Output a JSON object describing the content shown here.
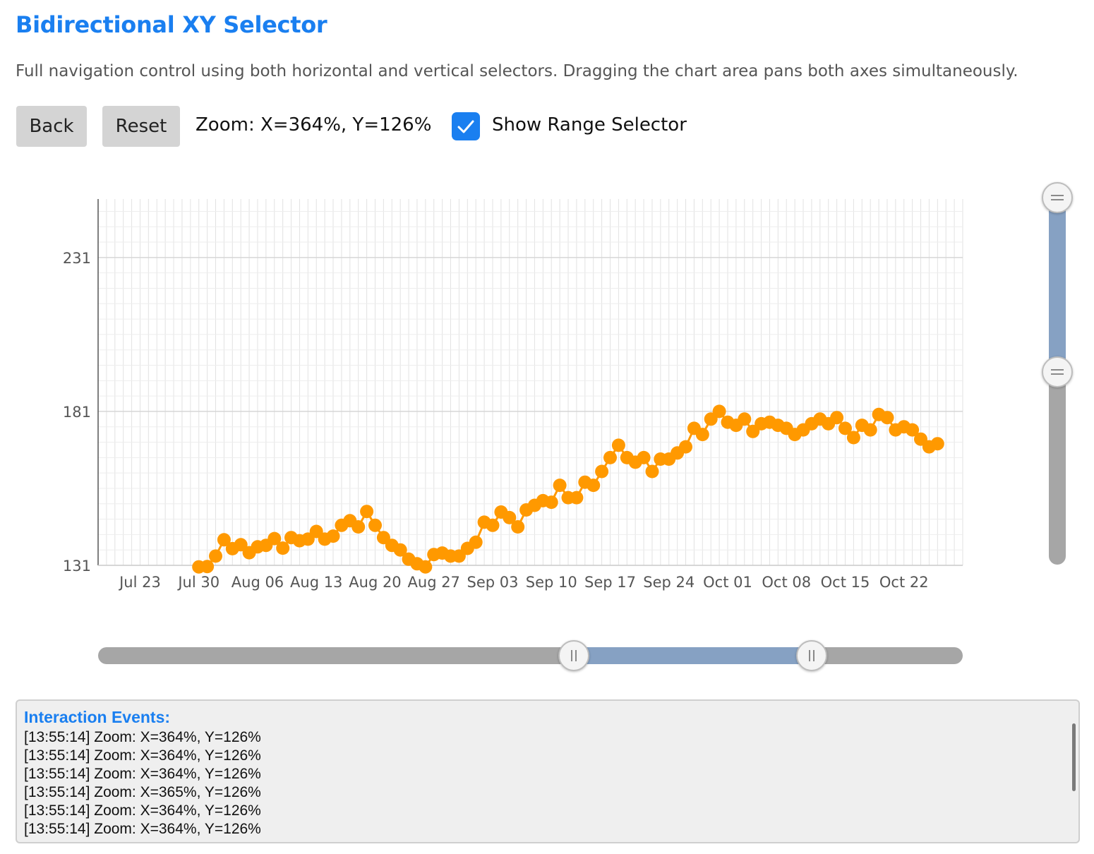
{
  "header": {
    "title": "Bidirectional XY Selector",
    "description": "Full navigation control using both horizontal and vertical selectors. Dragging the chart area pans both axes simultaneously."
  },
  "toolbar": {
    "back_label": "Back",
    "reset_label": "Reset",
    "zoom_text": "Zoom: X=364%, Y=126%",
    "range_selector_label": "Show Range Selector",
    "range_selector_checked": true
  },
  "colors": {
    "accent": "#1a7ff0",
    "series": "#ff9900",
    "selector_fill": "#86a1c3",
    "selector_track": "#a6a6a6"
  },
  "chart_data": {
    "type": "scatter",
    "x_type": "date",
    "x_range": [
      "2024-07-18",
      "2024-10-29"
    ],
    "ylim": [
      131,
      250
    ],
    "y_ticks": [
      131,
      181,
      231
    ],
    "x_tick_labels": [
      "Jul 23",
      "Jul 30",
      "Aug 06",
      "Aug 13",
      "Aug 20",
      "Aug 27",
      "Sep 03",
      "Sep 10",
      "Sep 17",
      "Sep 24",
      "Oct 01",
      "Oct 08",
      "Oct 15",
      "Oct 22"
    ],
    "x_tick_dates": [
      "2024-07-23",
      "2024-07-30",
      "2024-08-06",
      "2024-08-13",
      "2024-08-20",
      "2024-08-27",
      "2024-09-03",
      "2024-09-10",
      "2024-09-17",
      "2024-09-24",
      "2024-10-01",
      "2024-10-08",
      "2024-10-15",
      "2024-10-22"
    ],
    "grid": true,
    "lines_connecting_points": true,
    "x": [
      "2024-07-30",
      "2024-07-31",
      "2024-08-01",
      "2024-08-02",
      "2024-08-03",
      "2024-08-04",
      "2024-08-05",
      "2024-08-06",
      "2024-08-07",
      "2024-08-08",
      "2024-08-09",
      "2024-08-10",
      "2024-08-11",
      "2024-08-12",
      "2024-08-13",
      "2024-08-14",
      "2024-08-15",
      "2024-08-16",
      "2024-08-17",
      "2024-08-18",
      "2024-08-19",
      "2024-08-20",
      "2024-08-21",
      "2024-08-22",
      "2024-08-23",
      "2024-08-24",
      "2024-08-25",
      "2024-08-26",
      "2024-08-27",
      "2024-08-28",
      "2024-08-29",
      "2024-08-30",
      "2024-08-31",
      "2024-09-01",
      "2024-09-02",
      "2024-09-03",
      "2024-09-04",
      "2024-09-05",
      "2024-09-06",
      "2024-09-07",
      "2024-09-08",
      "2024-09-09",
      "2024-09-10",
      "2024-09-11",
      "2024-09-12",
      "2024-09-13",
      "2024-09-14",
      "2024-09-15",
      "2024-09-16",
      "2024-09-17",
      "2024-09-18",
      "2024-09-19",
      "2024-09-20",
      "2024-09-21",
      "2024-09-22",
      "2024-09-23",
      "2024-09-24",
      "2024-09-25",
      "2024-09-26",
      "2024-09-27",
      "2024-09-28",
      "2024-09-29",
      "2024-09-30",
      "2024-10-01",
      "2024-10-02",
      "2024-10-03",
      "2024-10-04",
      "2024-10-05",
      "2024-10-06",
      "2024-10-07",
      "2024-10-08",
      "2024-10-09",
      "2024-10-10",
      "2024-10-11",
      "2024-10-12",
      "2024-10-13",
      "2024-10-14",
      "2024-10-15",
      "2024-10-16",
      "2024-10-17",
      "2024-10-18",
      "2024-10-19",
      "2024-10-20",
      "2024-10-21",
      "2024-10-22",
      "2024-10-23",
      "2024-10-24",
      "2024-10-25",
      "2024-10-26"
    ],
    "y": [
      130.5,
      130.6,
      134.0,
      139.3,
      136.4,
      137.7,
      135.1,
      137.0,
      137.5,
      139.7,
      136.6,
      140.0,
      139.0,
      139.5,
      142.0,
      139.5,
      140.5,
      144.0,
      145.5,
      143.5,
      148.5,
      144.0,
      140.0,
      137.5,
      136.0,
      133.0,
      131.5,
      130.5,
      134.5,
      135.0,
      134.0,
      134.0,
      136.5,
      138.5,
      145.0,
      144.0,
      148.3,
      146.5,
      143.5,
      149.0,
      150.5,
      152.0,
      151.5,
      157.0,
      153.0,
      153.0,
      158.0,
      157.0,
      161.5,
      166.0,
      170.0,
      166.0,
      164.5,
      166.0,
      161.5,
      165.5,
      165.5,
      167.5,
      169.5,
      175.5,
      173.5,
      178.5,
      181.0,
      177.5,
      176.5,
      178.5,
      174.5,
      177.0,
      177.5,
      176.5,
      175.5,
      173.5,
      175.0,
      177.0,
      178.5,
      177.0,
      179.0,
      175.5,
      172.5,
      176.5,
      175.0,
      180.0,
      179.0,
      175.0,
      176.0,
      175.0,
      172.0,
      169.5,
      170.5
    ]
  },
  "x_selector": {
    "start_fraction": 0.55,
    "end_fraction": 0.825
  },
  "y_selector": {
    "top_fraction": 0.0,
    "bottom_fraction": 0.475
  },
  "log": {
    "title": "Interaction Events:",
    "entries": [
      "[13:55:14] Zoom: X=364%, Y=126%",
      "[13:55:14] Zoom: X=364%, Y=126%",
      "[13:55:14] Zoom: X=364%, Y=126%",
      "[13:55:14] Zoom: X=365%, Y=126%",
      "[13:55:14] Zoom: X=364%, Y=126%",
      "[13:55:14] Zoom: X=364%, Y=126%"
    ]
  }
}
